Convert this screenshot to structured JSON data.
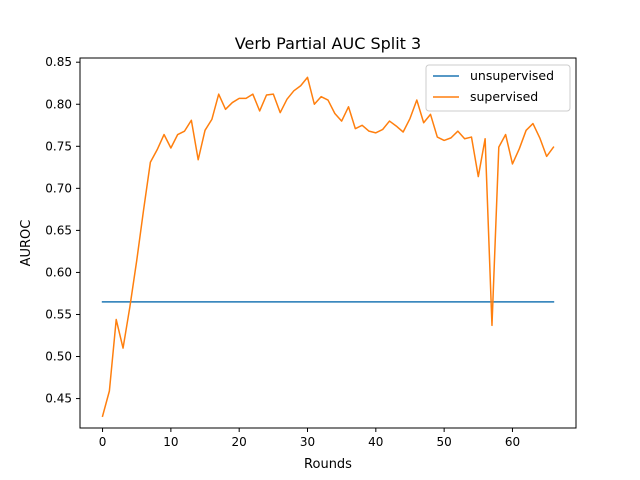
{
  "chart_data": {
    "type": "line",
    "title": "Verb Partial AUC Split 3",
    "xlabel": "Rounds",
    "ylabel": "AUROC",
    "xlim": [
      -3.3,
      69.3
    ],
    "ylim": [
      0.415,
      0.855
    ],
    "x_ticks": [
      0,
      10,
      20,
      30,
      40,
      50,
      60
    ],
    "y_ticks": [
      0.45,
      0.5,
      0.55,
      0.6,
      0.65,
      0.7,
      0.75,
      0.8,
      0.85
    ],
    "y_tick_labels": [
      "0.45",
      "0.50",
      "0.55",
      "0.60",
      "0.65",
      "0.70",
      "0.75",
      "0.80",
      "0.85"
    ],
    "grid": false,
    "legend_position": "top-right",
    "series": [
      {
        "name": "unsupervised",
        "color": "#1f77b4",
        "x": [
          0,
          66
        ],
        "y": [
          0.565,
          0.565
        ]
      },
      {
        "name": "supervised",
        "color": "#ff7f0e",
        "x": [
          0,
          1,
          2,
          3,
          4,
          5,
          6,
          7,
          8,
          9,
          10,
          11,
          12,
          13,
          14,
          15,
          16,
          17,
          18,
          19,
          20,
          21,
          22,
          23,
          24,
          25,
          26,
          27,
          28,
          29,
          30,
          31,
          32,
          33,
          34,
          35,
          36,
          37,
          38,
          39,
          40,
          41,
          42,
          43,
          44,
          45,
          46,
          47,
          48,
          49,
          50,
          51,
          52,
          53,
          54,
          55,
          56,
          57,
          58,
          59,
          60,
          61,
          62,
          63,
          64,
          65,
          66
        ],
        "y": [
          0.429,
          0.459,
          0.544,
          0.51,
          0.559,
          0.614,
          0.674,
          0.731,
          0.746,
          0.764,
          0.748,
          0.764,
          0.768,
          0.781,
          0.734,
          0.769,
          0.782,
          0.812,
          0.794,
          0.802,
          0.807,
          0.807,
          0.812,
          0.792,
          0.811,
          0.812,
          0.79,
          0.806,
          0.816,
          0.822,
          0.832,
          0.8,
          0.809,
          0.805,
          0.789,
          0.78,
          0.797,
          0.771,
          0.775,
          0.768,
          0.766,
          0.77,
          0.78,
          0.774,
          0.767,
          0.783,
          0.805,
          0.778,
          0.788,
          0.761,
          0.757,
          0.76,
          0.768,
          0.759,
          0.761,
          0.714,
          0.759,
          0.537,
          0.749,
          0.764,
          0.729,
          0.747,
          0.769,
          0.777,
          0.76,
          0.738,
          0.749
        ]
      }
    ]
  }
}
